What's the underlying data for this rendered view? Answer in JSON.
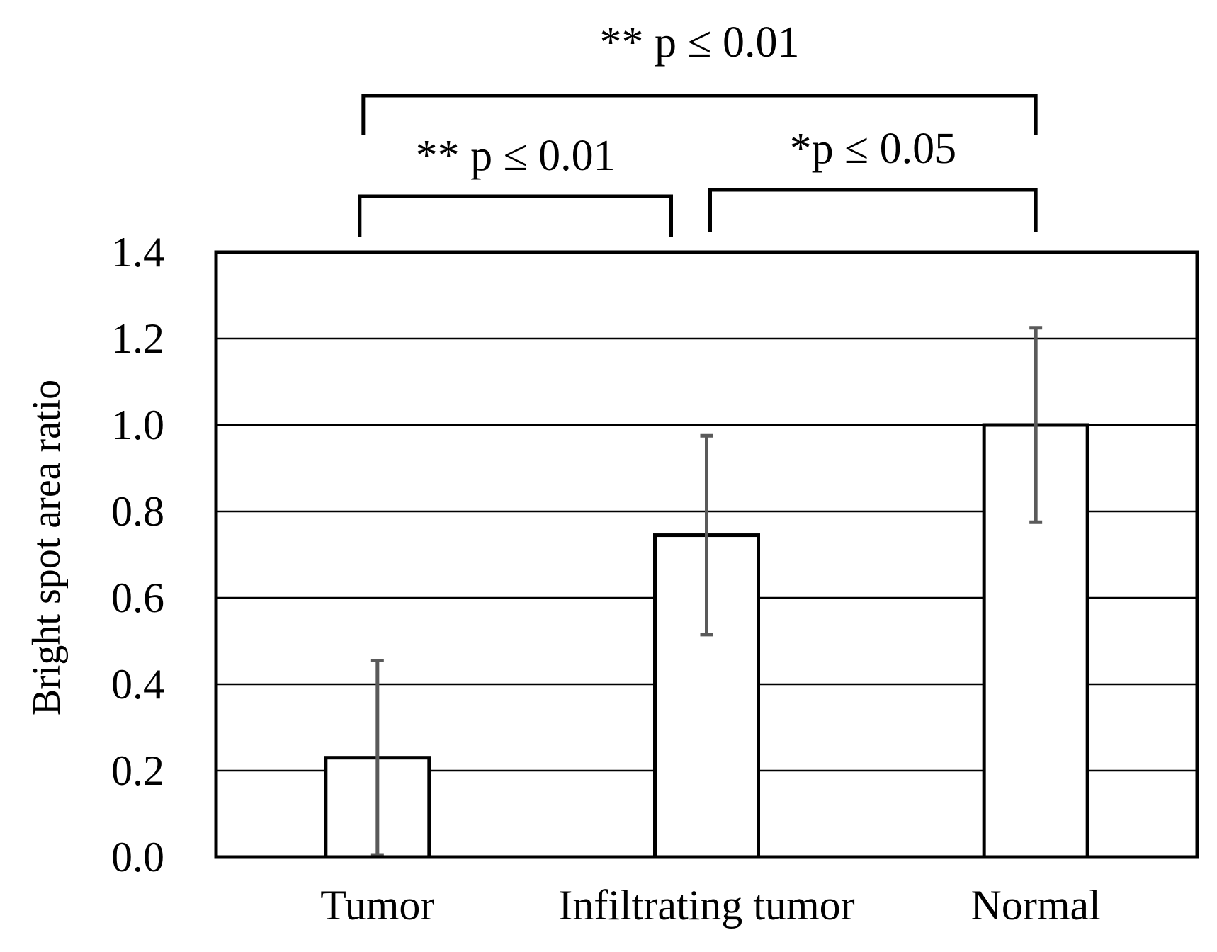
{
  "chart_data": {
    "type": "bar",
    "categories": [
      "Tumor",
      "Infiltrating tumor",
      "Normal"
    ],
    "values": [
      0.23,
      0.745,
      1.0
    ],
    "error_bars": [
      0.225,
      0.23,
      0.225
    ],
    "ylabel": "Bright  spot area ratio",
    "xlabel": "",
    "ylim": [
      0,
      1.4
    ],
    "yticks": [
      0.0,
      0.2,
      0.4,
      0.6,
      0.8,
      1.0,
      1.2,
      1.4
    ],
    "ytick_labels": [
      "0.0",
      "0.2",
      "0.4",
      "0.6",
      "0.8",
      "1.0",
      "1.2",
      "1.4"
    ],
    "grid": true,
    "colors": {
      "bar_fill": "#ffffff",
      "bar_edge": "#000000",
      "error_bar": "#5a5a5a",
      "grid": "#000000"
    },
    "significance": [
      {
        "from": "Tumor",
        "to": "Normal",
        "label": "** p ≤ 0.01"
      },
      {
        "from": "Tumor",
        "to": "Infiltrating tumor",
        "label": "** p ≤ 0.01"
      },
      {
        "from": "Infiltrating tumor",
        "to": "Normal",
        "label": "*p ≤ 0.05"
      }
    ]
  }
}
